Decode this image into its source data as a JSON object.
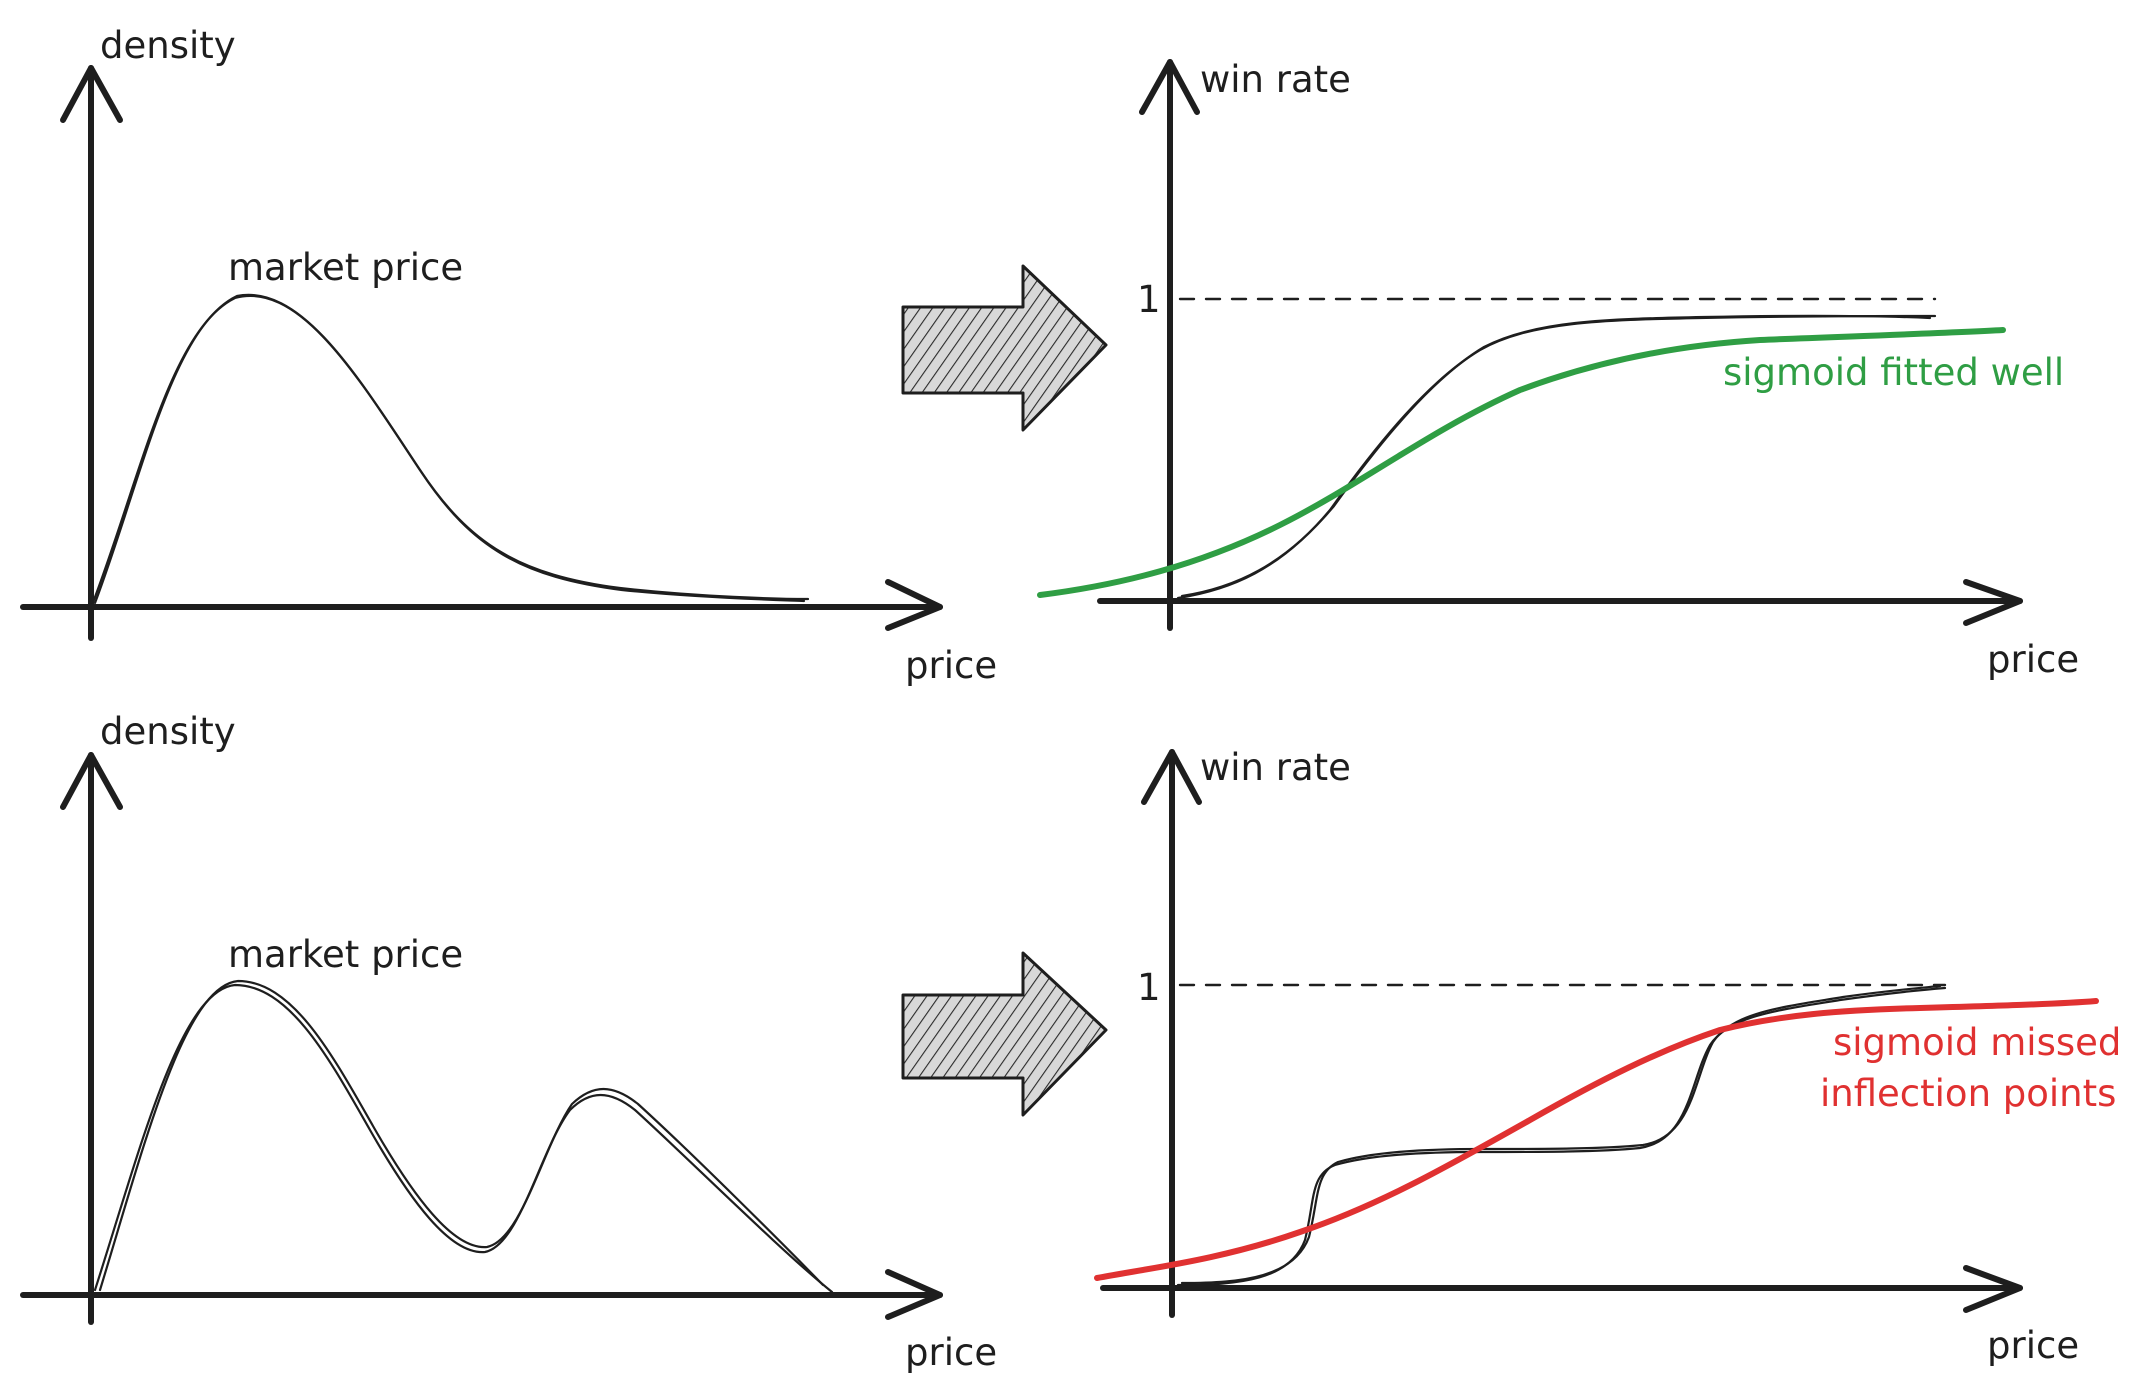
{
  "panels": {
    "top_left": {
      "y_label": "density",
      "x_label": "price",
      "annotation": "market price"
    },
    "top_right": {
      "y_label": "win rate",
      "x_label": "price",
      "one_tick": "1",
      "fit_label": "sigmoid fitted well"
    },
    "bottom_left": {
      "y_label": "density",
      "x_label": "price",
      "annotation": "market price"
    },
    "bottom_right": {
      "y_label": "win rate",
      "x_label": "price",
      "one_tick": "1",
      "fit_label_line1": "sigmoid missed",
      "fit_label_line2": "inflection points"
    }
  },
  "colors": {
    "ink": "#1e1e1e",
    "good_fit": "#2f9e44",
    "bad_fit": "#e03131",
    "arrow_fill": "#e0e0e0"
  },
  "icons": {
    "transform_arrow": "hatched-right-arrow-icon"
  }
}
